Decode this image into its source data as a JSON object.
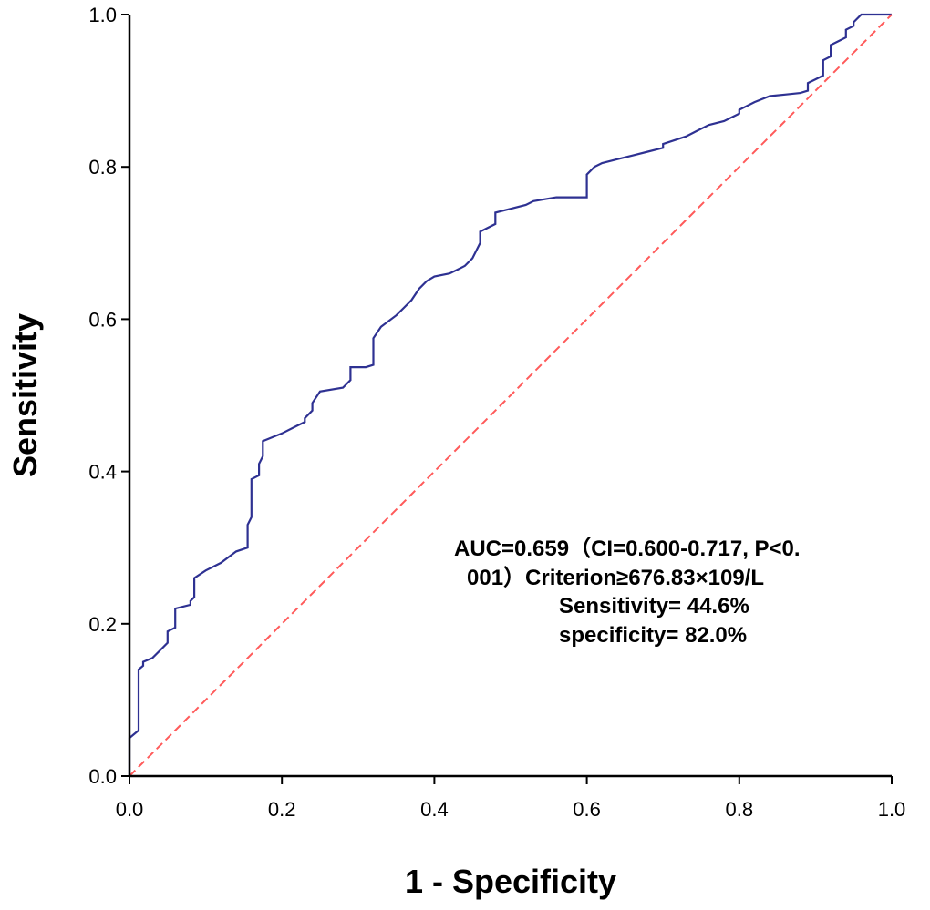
{
  "chart_data": {
    "type": "line",
    "xlabel": "1 - Specificity",
    "ylabel": "Sensitivity",
    "xlim": [
      0,
      1
    ],
    "ylim": [
      0,
      1
    ],
    "x_ticks": [
      "0.0",
      "0.2",
      "0.4",
      "0.6",
      "0.8",
      "1.0"
    ],
    "y_ticks": [
      "0.0",
      "0.2",
      "0.4",
      "0.6",
      "0.8",
      "1.0"
    ],
    "grid": false,
    "series": [
      {
        "color": "#2e3192",
        "x": [
          0.0,
          0.0,
          0.012,
          0.012,
          0.018,
          0.018,
          0.03,
          0.04,
          0.05,
          0.05,
          0.06,
          0.06,
          0.08,
          0.08,
          0.085,
          0.085,
          0.1,
          0.12,
          0.14,
          0.155,
          0.155,
          0.16,
          0.16,
          0.17,
          0.17,
          0.175,
          0.175,
          0.2,
          0.22,
          0.23,
          0.23,
          0.24,
          0.24,
          0.25,
          0.28,
          0.29,
          0.29,
          0.31,
          0.32,
          0.32,
          0.33,
          0.35,
          0.36,
          0.37,
          0.38,
          0.39,
          0.4,
          0.42,
          0.43,
          0.44,
          0.45,
          0.46,
          0.46,
          0.47,
          0.48,
          0.48,
          0.5,
          0.52,
          0.53,
          0.56,
          0.6,
          0.6,
          0.61,
          0.62,
          0.64,
          0.66,
          0.68,
          0.7,
          0.7,
          0.73,
          0.74,
          0.76,
          0.78,
          0.8,
          0.8,
          0.82,
          0.84,
          0.86,
          0.88,
          0.89,
          0.89,
          0.9,
          0.91,
          0.91,
          0.92,
          0.92,
          0.93,
          0.94,
          0.94,
          0.95,
          0.95,
          0.96,
          1.0
        ],
        "y": [
          0.0,
          0.05,
          0.06,
          0.14,
          0.145,
          0.15,
          0.155,
          0.165,
          0.175,
          0.19,
          0.195,
          0.22,
          0.225,
          0.23,
          0.235,
          0.26,
          0.27,
          0.28,
          0.295,
          0.3,
          0.33,
          0.34,
          0.39,
          0.395,
          0.41,
          0.42,
          0.44,
          0.45,
          0.46,
          0.465,
          0.47,
          0.48,
          0.49,
          0.505,
          0.51,
          0.52,
          0.537,
          0.537,
          0.54,
          0.575,
          0.59,
          0.605,
          0.615,
          0.625,
          0.64,
          0.65,
          0.656,
          0.66,
          0.665,
          0.67,
          0.68,
          0.7,
          0.715,
          0.72,
          0.725,
          0.74,
          0.745,
          0.75,
          0.755,
          0.76,
          0.76,
          0.79,
          0.8,
          0.805,
          0.81,
          0.815,
          0.82,
          0.825,
          0.83,
          0.84,
          0.845,
          0.855,
          0.86,
          0.87,
          0.875,
          0.885,
          0.893,
          0.895,
          0.897,
          0.9,
          0.91,
          0.915,
          0.92,
          0.94,
          0.945,
          0.96,
          0.965,
          0.97,
          0.98,
          0.985,
          0.99,
          1.0,
          1.0
        ]
      },
      {
        "color": "#ff5a5a",
        "style": "dashed",
        "x": [
          0,
          1
        ],
        "y": [
          0,
          1
        ]
      }
    ],
    "annotations": [
      "AUC=0.659（CI=0.600-0.717, P<0.",
      "001）Criterion≥676.83×109/L",
      "Sensitivity= 44.6%",
      "specificity= 82.0%"
    ]
  }
}
